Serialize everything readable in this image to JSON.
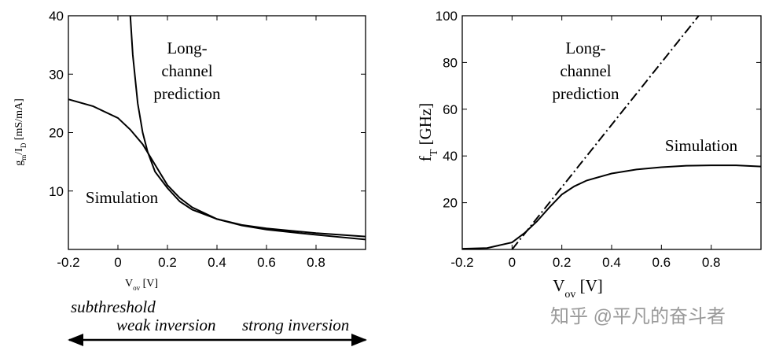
{
  "chart_data": [
    {
      "type": "line",
      "xlabel": [
        "V",
        "ov",
        " [V]"
      ],
      "ylabel": [
        "g",
        "m",
        "/I",
        "D",
        " [mS/mA]"
      ],
      "xlim": [
        -0.2,
        1.0
      ],
      "xticks": [
        -0.2,
        0,
        0.2,
        0.4,
        0.6,
        0.8
      ],
      "ylim": [
        0,
        40
      ],
      "yticks": [
        10,
        20,
        30,
        40
      ],
      "series": [
        {
          "name": "Simulation",
          "color": "#000000",
          "dash": "solid",
          "x": [
            -0.2,
            -0.1,
            0,
            0.05,
            0.1,
            0.15,
            0.2,
            0.25,
            0.3,
            0.4,
            0.5,
            0.6,
            0.8,
            1.0
          ],
          "values": [
            25.7,
            24.5,
            22.5,
            20.5,
            18,
            14.5,
            11,
            8.8,
            7.2,
            5.2,
            4.1,
            3.4,
            2.5,
            1.7
          ]
        },
        {
          "name": "Long-channel prediction",
          "color": "#000000",
          "dash": "solid",
          "x": [
            0.05,
            0.06,
            0.08,
            0.1,
            0.12,
            0.15,
            0.2,
            0.25,
            0.3,
            0.4,
            0.5,
            0.6,
            0.8,
            1.0
          ],
          "values": [
            40,
            33.3,
            25,
            20,
            16.7,
            13.3,
            10.5,
            8.2,
            6.8,
            5.2,
            4.2,
            3.6,
            2.8,
            2.2
          ]
        }
      ],
      "annotations": [
        [
          "Long-",
          "channel",
          "prediction"
        ],
        [
          "Simulation"
        ]
      ]
    },
    {
      "type": "line",
      "xlabel": [
        "V",
        "ov",
        "  [V]"
      ],
      "ylabel": [
        "f",
        "T",
        " [GHz]"
      ],
      "xlim": [
        -0.2,
        1.0
      ],
      "xticks": [
        -0.2,
        0,
        0.2,
        0.4,
        0.6,
        0.8
      ],
      "ylim": [
        0,
        100
      ],
      "yticks": [
        20,
        40,
        60,
        80,
        100
      ],
      "series": [
        {
          "name": "Long-channel prediction",
          "color": "#000000",
          "dash": "dashdot",
          "x": [
            0,
            0.75
          ],
          "values": [
            0,
            100
          ]
        },
        {
          "name": "Simulation",
          "color": "#000000",
          "dash": "solid",
          "x": [
            -0.2,
            -0.1,
            0,
            0.05,
            0.1,
            0.15,
            0.2,
            0.25,
            0.3,
            0.4,
            0.5,
            0.6,
            0.7,
            0.8,
            0.9,
            1.0
          ],
          "values": [
            0.3,
            0.6,
            3,
            7,
            12,
            18,
            23.5,
            27,
            29.5,
            32.5,
            34.2,
            35.2,
            35.8,
            36,
            36,
            35.5
          ]
        }
      ],
      "annotations": [
        [
          "Long-",
          "channel",
          "prediction"
        ],
        [
          "Simulation"
        ]
      ]
    }
  ],
  "regions": [
    "subthreshold",
    "weak inversion",
    "strong inversion"
  ],
  "watermark": "知乎 @平凡的奋斗者"
}
